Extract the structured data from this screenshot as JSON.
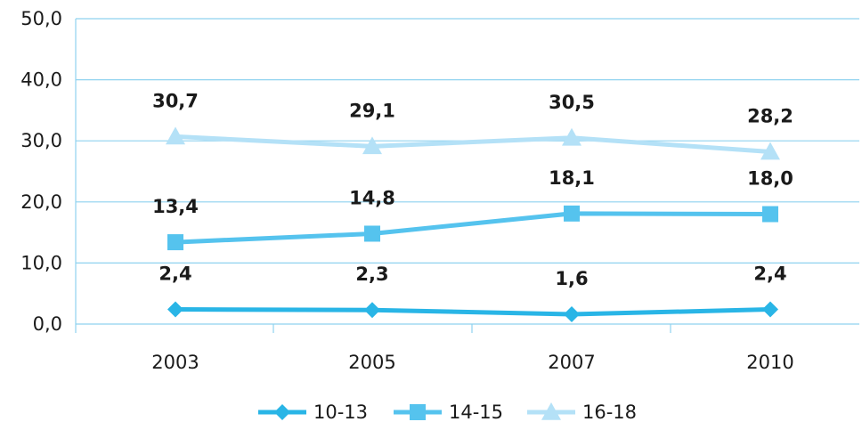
{
  "chart_data": {
    "type": "line",
    "title": "",
    "xlabel": "",
    "ylabel": "",
    "categories": [
      "2003",
      "2005",
      "2007",
      "2010"
    ],
    "ylim": [
      0,
      50
    ],
    "yticks": [
      "0,0",
      "10,0",
      "20,0",
      "30,0",
      "40,0",
      "50,0"
    ],
    "grid": true,
    "legend": "bottom",
    "series": [
      {
        "name": "10-13",
        "values": [
          2.4,
          2.3,
          1.6,
          2.4
        ],
        "labels": [
          "2,4",
          "2,3",
          "1,6",
          "2,4"
        ],
        "marker": "diamond",
        "color": "#29b5e6"
      },
      {
        "name": "14-15",
        "values": [
          13.4,
          14.8,
          18.1,
          18.0
        ],
        "labels": [
          "13,4",
          "14,8",
          "18,1",
          "18,0"
        ],
        "marker": "square",
        "color": "#55c3ee"
      },
      {
        "name": "16-18",
        "values": [
          30.7,
          29.1,
          30.5,
          28.2
        ],
        "labels": [
          "30,7",
          "29,1",
          "30,5",
          "28,2"
        ],
        "marker": "triangle",
        "color": "#b4e1f7"
      }
    ]
  }
}
